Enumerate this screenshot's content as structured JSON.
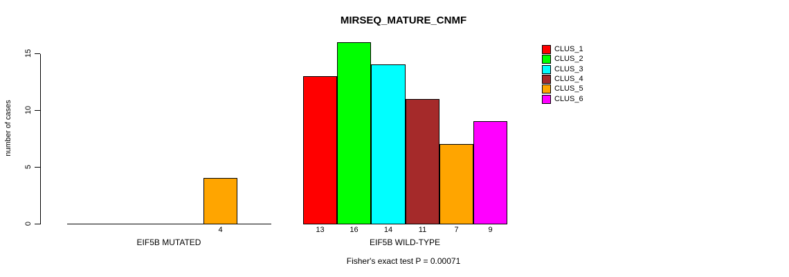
{
  "chart_data": {
    "type": "bar",
    "title": "MIRSEQ_MATURE_CNMF",
    "ylabel": "number of cases",
    "yticks": [
      0,
      5,
      10,
      15
    ],
    "ylim": [
      0,
      16
    ],
    "grid": false,
    "legend_position": "top-right",
    "legend": [
      {
        "label": "CLUS_1",
        "color": "#FF0000"
      },
      {
        "label": "CLUS_2",
        "color": "#00FF00"
      },
      {
        "label": "CLUS_3",
        "color": "#00FFFF"
      },
      {
        "label": "CLUS_4",
        "color": "#A52A2A"
      },
      {
        "label": "CLUS_5",
        "color": "#FFA500"
      },
      {
        "label": "CLUS_6",
        "color": "#FF00FF"
      }
    ],
    "groups": [
      {
        "label": "EIF5B MUTATED",
        "slots": 6,
        "bars": [
          {
            "slot": 4,
            "cluster": "CLUS_5",
            "value": 4,
            "tick_label": "4",
            "color": "#FFA500"
          }
        ]
      },
      {
        "label": "EIF5B WILD-TYPE",
        "slots": 6,
        "bars": [
          {
            "slot": 0,
            "cluster": "CLUS_1",
            "value": 13,
            "tick_label": "13",
            "color": "#FF0000"
          },
          {
            "slot": 1,
            "cluster": "CLUS_2",
            "value": 16,
            "tick_label": "16",
            "color": "#00FF00"
          },
          {
            "slot": 2,
            "cluster": "CLUS_3",
            "value": 14,
            "tick_label": "14",
            "color": "#00FFFF"
          },
          {
            "slot": 3,
            "cluster": "CLUS_4",
            "value": 11,
            "tick_label": "11",
            "color": "#A52A2A"
          },
          {
            "slot": 4,
            "cluster": "CLUS_5",
            "value": 7,
            "tick_label": "7",
            "color": "#FFA500"
          },
          {
            "slot": 5,
            "cluster": "CLUS_6",
            "value": 9,
            "tick_label": "9",
            "color": "#FF00FF"
          }
        ]
      }
    ],
    "footnote": "Fisher's exact test P = 0.00071",
    "colors": {
      "axis": "#000000",
      "text": "#000000",
      "background": "#FFFFFF"
    }
  }
}
